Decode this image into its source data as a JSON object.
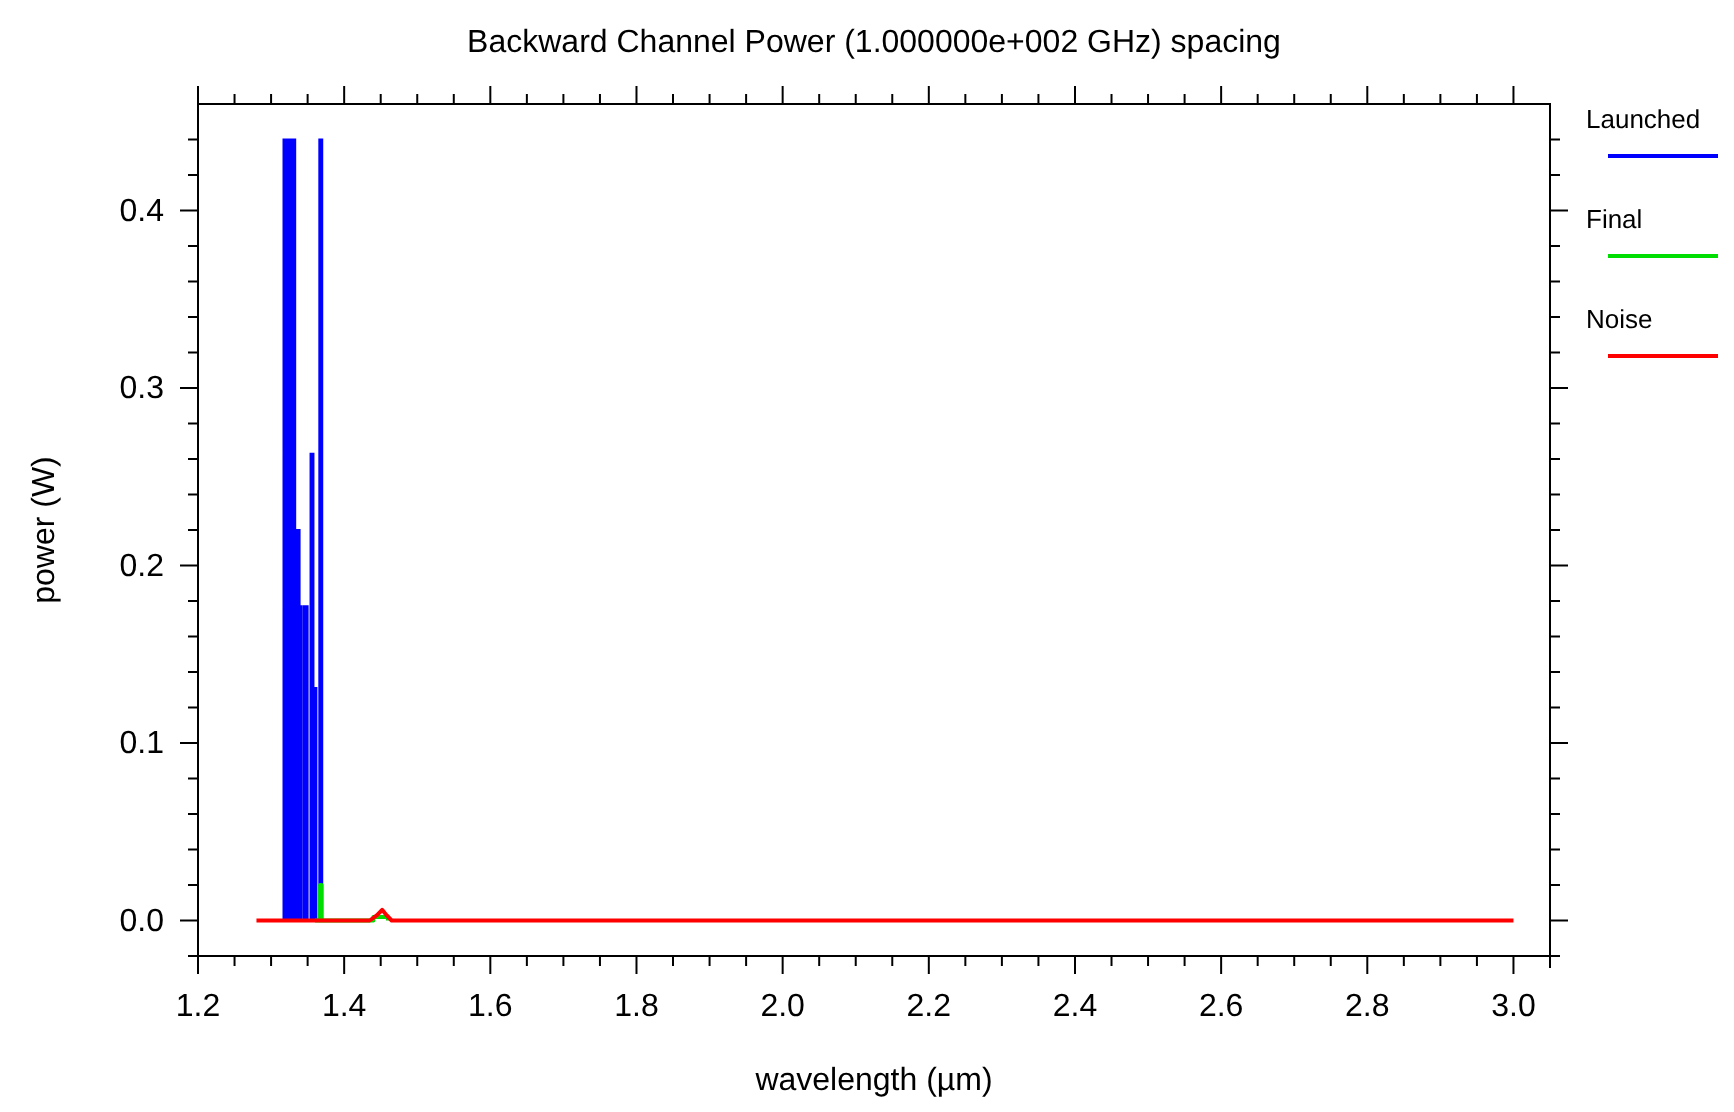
{
  "chart_data": {
    "type": "line",
    "title": "Backward Channel Power (1.000000e+002 GHz) spacing",
    "xlabel": "wavelength (µm)",
    "ylabel": "power (W)",
    "xlim": [
      1.2,
      3.05
    ],
    "ylim": [
      -0.02,
      0.46
    ],
    "xticks": [
      {
        "value": 1.2,
        "label": "1.2"
      },
      {
        "value": 1.25,
        "label": null
      },
      {
        "value": 1.3,
        "label": null
      },
      {
        "value": 1.35,
        "label": null
      },
      {
        "value": 1.4,
        "label": "1.4"
      },
      {
        "value": 1.45,
        "label": null
      },
      {
        "value": 1.5,
        "label": null
      },
      {
        "value": 1.55,
        "label": null
      },
      {
        "value": 1.6,
        "label": "1.6"
      },
      {
        "value": 1.65,
        "label": null
      },
      {
        "value": 1.7,
        "label": null
      },
      {
        "value": 1.75,
        "label": null
      },
      {
        "value": 1.8,
        "label": "1.8"
      },
      {
        "value": 1.85,
        "label": null
      },
      {
        "value": 1.9,
        "label": null
      },
      {
        "value": 1.95,
        "label": null
      },
      {
        "value": 2.0,
        "label": "2.0"
      },
      {
        "value": 2.05,
        "label": null
      },
      {
        "value": 2.1,
        "label": null
      },
      {
        "value": 2.15,
        "label": null
      },
      {
        "value": 2.2,
        "label": "2.2"
      },
      {
        "value": 2.25,
        "label": null
      },
      {
        "value": 2.3,
        "label": null
      },
      {
        "value": 2.35,
        "label": null
      },
      {
        "value": 2.4,
        "label": "2.4"
      },
      {
        "value": 2.45,
        "label": null
      },
      {
        "value": 2.5,
        "label": null
      },
      {
        "value": 2.55,
        "label": null
      },
      {
        "value": 2.6,
        "label": "2.6"
      },
      {
        "value": 2.65,
        "label": null
      },
      {
        "value": 2.7,
        "label": null
      },
      {
        "value": 2.75,
        "label": null
      },
      {
        "value": 2.8,
        "label": "2.8"
      },
      {
        "value": 2.85,
        "label": null
      },
      {
        "value": 2.9,
        "label": null
      },
      {
        "value": 2.95,
        "label": null
      },
      {
        "value": 3.0,
        "label": "3.0"
      }
    ],
    "yticks": [
      {
        "value": -0.02,
        "label": null
      },
      {
        "value": 0,
        "label": "0.0"
      },
      {
        "value": 0.02,
        "label": null
      },
      {
        "value": 0.04,
        "label": null
      },
      {
        "value": 0.06,
        "label": null
      },
      {
        "value": 0.08,
        "label": null
      },
      {
        "value": 0.1,
        "label": "0.1"
      },
      {
        "value": 0.12,
        "label": null
      },
      {
        "value": 0.14,
        "label": null
      },
      {
        "value": 0.16,
        "label": null
      },
      {
        "value": 0.18,
        "label": null
      },
      {
        "value": 0.2,
        "label": "0.2"
      },
      {
        "value": 0.22,
        "label": null
      },
      {
        "value": 0.24,
        "label": null
      },
      {
        "value": 0.26,
        "label": null
      },
      {
        "value": 0.28,
        "label": null
      },
      {
        "value": 0.3,
        "label": "0.3"
      },
      {
        "value": 0.32,
        "label": null
      },
      {
        "value": 0.34,
        "label": null
      },
      {
        "value": 0.36,
        "label": null
      },
      {
        "value": 0.38,
        "label": null
      },
      {
        "value": 0.4,
        "label": "0.4"
      },
      {
        "value": 0.42,
        "label": null
      },
      {
        "value": 0.44,
        "label": null
      }
    ],
    "legend": "top right",
    "grid": false,
    "line_style": "solid",
    "series": [
      {
        "name": "Launched",
        "color": "#0000ff",
        "type": "area",
        "x": [
          1.317,
          1.317,
          1.333,
          1.333,
          1.339,
          1.339,
          1.342,
          1.342,
          1.345,
          1.345,
          1.35,
          1.35,
          1.354,
          1.354,
          1.358,
          1.358,
          1.362,
          1.362,
          1.366,
          1.366,
          1.37,
          1.37
        ],
        "values": [
          0,
          0.44,
          0.44,
          0.22,
          0.22,
          0.177,
          0.177,
          0,
          0,
          0.177,
          0.177,
          0,
          0,
          0.263,
          0.263,
          0.131,
          0.131,
          0,
          0,
          0.44,
          0.44,
          0
        ]
      },
      {
        "name": "Final",
        "color": "#00dd00",
        "x": [
          1.36,
          1.367,
          1.367,
          1.369,
          1.369,
          1.44,
          1.44,
          1.46,
          1.46
        ],
        "values": [
          0,
          0,
          0.02,
          0.02,
          0,
          0,
          0.002,
          0.002,
          0
        ]
      },
      {
        "name": "Noise",
        "color": "#ff0000",
        "x": [
          1.28,
          1.435,
          1.445,
          1.452,
          1.458,
          1.465,
          3.0
        ],
        "values": [
          0,
          0,
          0.003,
          0.006,
          0.003,
          0,
          0
        ]
      }
    ]
  }
}
